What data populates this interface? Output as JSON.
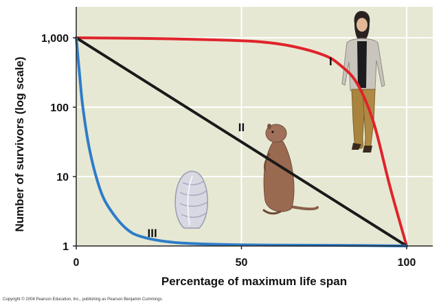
{
  "chart_data": {
    "type": "line",
    "xlabel": "Percentage of maximum life span",
    "ylabel": "Number of survivors (log scale)",
    "xlim": [
      0,
      100
    ],
    "ylim": [
      1,
      1000
    ],
    "yscale": "log",
    "x_ticks": [
      {
        "value": 0,
        "label": "0"
      },
      {
        "value": 50,
        "label": "50"
      },
      {
        "value": 100,
        "label": "100"
      }
    ],
    "y_ticks": [
      {
        "value": 1,
        "label": "1"
      },
      {
        "value": 10,
        "label": "10"
      },
      {
        "value": 100,
        "label": "100"
      },
      {
        "value": 1000,
        "label": "1,000"
      }
    ],
    "grid": true,
    "background_color": "#e6e8d3",
    "series": [
      {
        "name": "I",
        "color": "#e0232b",
        "x": [
          0,
          20,
          40,
          55,
          65,
          75,
          80,
          85,
          90,
          95,
          100
        ],
        "y": [
          1000,
          980,
          940,
          880,
          760,
          560,
          400,
          220,
          60,
          7,
          1
        ]
      },
      {
        "name": "II",
        "color": "#1a1a1a",
        "x": [
          0,
          100
        ],
        "y": [
          1000,
          1
        ]
      },
      {
        "name": "III",
        "color": "#2e7cc9",
        "x": [
          0,
          1,
          2,
          4,
          7,
          10,
          15,
          20,
          30,
          45,
          60,
          80,
          100
        ],
        "y": [
          1000,
          300,
          100,
          25,
          7,
          3.5,
          1.8,
          1.35,
          1.12,
          1.05,
          1.03,
          1.02,
          1.0
        ]
      }
    ],
    "curve_labels": [
      {
        "text": "I",
        "x": 77,
        "y": 400
      },
      {
        "text": "II",
        "x": 50,
        "y": 45
      },
      {
        "text": "III",
        "x": 23,
        "y": 1.35
      }
    ],
    "illustrations": [
      "human-figure",
      "ground-squirrel-figure",
      "oyster-figure"
    ]
  },
  "copyright": "Copyright © 2008 Pearson Education, Inc., publishing as Pearson Benjamin Cummings."
}
